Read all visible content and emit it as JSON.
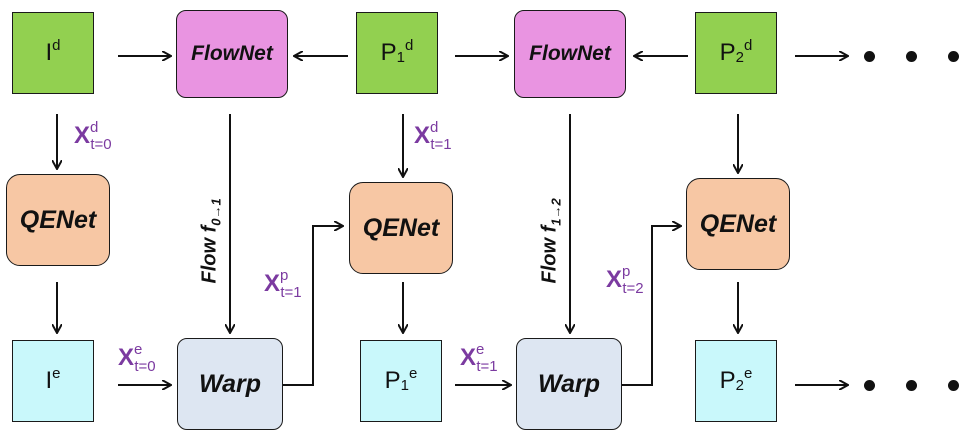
{
  "frames": {
    "i_d": {
      "base": "I",
      "sup": "d"
    },
    "p1_d": {
      "base": "P",
      "sub": "1",
      "sup": "d"
    },
    "p2_d": {
      "base": "P",
      "sub": "2",
      "sup": "d"
    },
    "i_e": {
      "base": "I",
      "sup": "e"
    },
    "p1_e": {
      "base": "P",
      "sub": "1",
      "sup": "e"
    },
    "p2_e": {
      "base": "P",
      "sub": "2",
      "sup": "e"
    }
  },
  "modules": {
    "flownet": "FlowNet",
    "qenet": "QENet",
    "warp": "Warp"
  },
  "flows": {
    "f01": {
      "text": "Flow f",
      "sub": "0→1"
    },
    "f12": {
      "text": "Flow f",
      "sub": "1→2"
    }
  },
  "edge_labels": {
    "xd_t0": {
      "base": "X",
      "sup": "d",
      "sub": "t=0"
    },
    "xd_t1": {
      "base": "X",
      "sup": "d",
      "sub": "t=1"
    },
    "xe_t0": {
      "base": "X",
      "sup": "e",
      "sub": "t=0"
    },
    "xe_t1": {
      "base": "X",
      "sup": "e",
      "sub": "t=1"
    },
    "xp_t1": {
      "base": "X",
      "sup": "p",
      "sub": "t=1"
    },
    "xp_t2": {
      "base": "X",
      "sup": "p",
      "sub": "t=2"
    }
  },
  "colors": {
    "frame_input": "#92d050",
    "frame_output": "#c9f8fb",
    "flownet": "#e994e1",
    "qenet": "#f7c7a4",
    "warp": "#dde6f2",
    "label_purple": "#7b3aa0"
  }
}
